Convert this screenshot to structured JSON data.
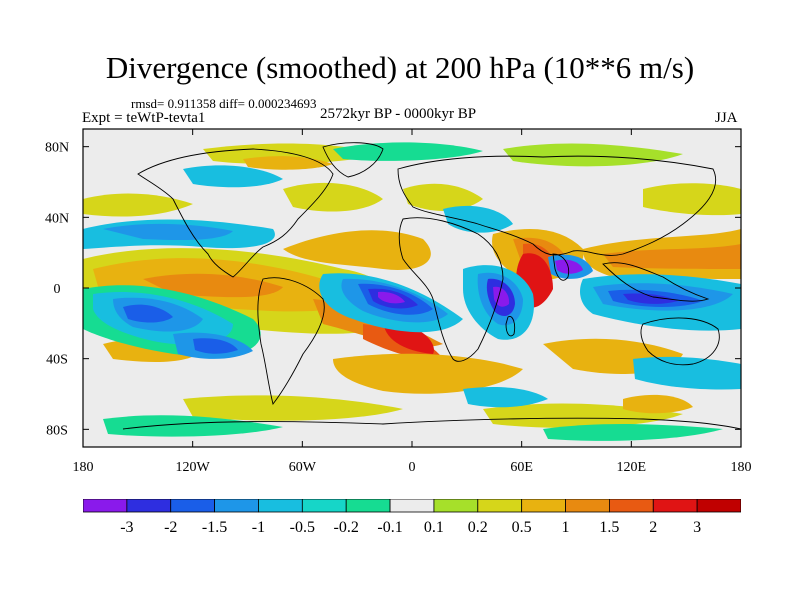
{
  "title": "Divergence (smoothed) at 200 hPa (10**6 m/s)",
  "stats_line": "rmsd= 0.911358 diff= 0.000234693",
  "experiment": "Expt = teWtP-tevta1",
  "period": "2572kyr BP - 0000kyr BP",
  "season": "JJA",
  "chart_data": {
    "type": "heatmap",
    "projection": "cylindrical-equidistant",
    "variable": "Divergence (smoothed) at 200 hPa",
    "units": "10**6 m/s",
    "x_range": [
      -180,
      180
    ],
    "y_range": [
      -90,
      90
    ],
    "x_ticks": [
      {
        "value": -180,
        "label": "180"
      },
      {
        "value": -120,
        "label": "120W"
      },
      {
        "value": -60,
        "label": "60W"
      },
      {
        "value": 0,
        "label": "0"
      },
      {
        "value": 60,
        "label": "60E"
      },
      {
        "value": 120,
        "label": "120E"
      },
      {
        "value": 180,
        "label": "180"
      }
    ],
    "y_ticks": [
      {
        "value": 80,
        "label": "80N"
      },
      {
        "value": 40,
        "label": "40N"
      },
      {
        "value": 0,
        "label": "0"
      },
      {
        "value": -40,
        "label": "40S"
      },
      {
        "value": -80,
        "label": "80S"
      }
    ],
    "contour_levels": [
      {
        "label": "-3",
        "color": "#8a1aeb"
      },
      {
        "label": "-2",
        "color": "#2e2ee0"
      },
      {
        "label": "-1.5",
        "color": "#1a5ee8"
      },
      {
        "label": "-1",
        "color": "#1e96e8"
      },
      {
        "label": "-0.5",
        "color": "#18bee0"
      },
      {
        "label": "-0.2",
        "color": "#16d6c8"
      },
      {
        "label": "-0.1",
        "color": "#16dc92"
      },
      {
        "label": "0.1",
        "color": "#ececec"
      },
      {
        "label": "0.2",
        "color": "#a6e02a"
      },
      {
        "label": "0.5",
        "color": "#d6d61a"
      },
      {
        "label": "1",
        "color": "#e8b210"
      },
      {
        "label": "1.5",
        "color": "#e88a10"
      },
      {
        "label": "2",
        "color": "#e85a12"
      },
      {
        "label": "3",
        "color": "#e01414"
      }
    ],
    "extremes": [
      {
        "lon": -140,
        "lat": -10,
        "value": -2.0
      },
      {
        "lon": -120,
        "lat": -28,
        "value": -2.0
      },
      {
        "lon": -15,
        "lat": -3,
        "value": -2.5
      },
      {
        "lon": 42,
        "lat": 3,
        "value": -3.2
      },
      {
        "lon": 55,
        "lat": -10,
        "value": -2.0
      },
      {
        "lon": 90,
        "lat": 13,
        "value": -1.5
      },
      {
        "lon": 115,
        "lat": -2,
        "value": -1.5
      },
      {
        "lon": 70,
        "lat": 0,
        "value": 3.0
      },
      {
        "lon": 65,
        "lat": 12,
        "value": 2.5
      },
      {
        "lon": -5,
        "lat": -15,
        "value": 1.5
      },
      {
        "lon": -100,
        "lat": 12,
        "value": 1.5
      },
      {
        "lon": 150,
        "lat": 12,
        "value": 1.0
      }
    ]
  }
}
